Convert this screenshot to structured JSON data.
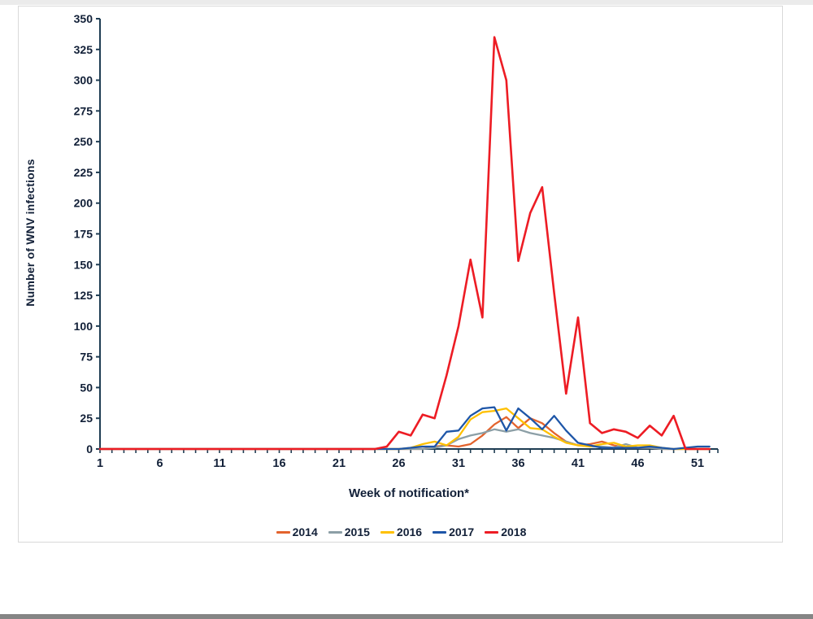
{
  "figure": {
    "axis_color": "#1f3d53",
    "text_color": "#122038",
    "background": "#ffffff",
    "frame_border_color": "#d9d9d9"
  },
  "chart_data": {
    "type": "line",
    "title": "",
    "xlabel": "Week of notification*",
    "ylabel": "Number of WNV infections",
    "xlim": [
      1,
      52
    ],
    "ylim": [
      0,
      350
    ],
    "ytick_step": 25,
    "grid": false,
    "legend_position": "bottom",
    "xticks": [
      1,
      6,
      11,
      16,
      21,
      26,
      31,
      36,
      41,
      46,
      51
    ],
    "yticks": [
      0,
      25,
      50,
      75,
      100,
      125,
      150,
      175,
      200,
      225,
      250,
      275,
      300,
      325,
      350
    ],
    "x_weeks": "1 through 52, one data point per week",
    "series": [
      {
        "name": "2014",
        "color": "#E3632D",
        "values": [
          0,
          0,
          0,
          0,
          0,
          0,
          0,
          0,
          0,
          0,
          0,
          0,
          0,
          0,
          0,
          0,
          0,
          0,
          0,
          0,
          0,
          0,
          0,
          0,
          0,
          0,
          0,
          0,
          2,
          3,
          2,
          4,
          11,
          20,
          26,
          17,
          25,
          21,
          13,
          6,
          3,
          4,
          6,
          3,
          1,
          1,
          1,
          0,
          0,
          0,
          0,
          0
        ]
      },
      {
        "name": "2015",
        "color": "#8C9FA6",
        "values": [
          0,
          0,
          0,
          0,
          0,
          0,
          0,
          0,
          0,
          0,
          0,
          0,
          0,
          0,
          0,
          0,
          0,
          0,
          0,
          0,
          0,
          0,
          0,
          0,
          0,
          0,
          0,
          0,
          1,
          3,
          8,
          11,
          13,
          16,
          14,
          16,
          13,
          11,
          9,
          6,
          3,
          2,
          2,
          1,
          4,
          1,
          1,
          0,
          0,
          0,
          0,
          0
        ]
      },
      {
        "name": "2016",
        "color": "#FFC000",
        "values": [
          0,
          0,
          0,
          0,
          0,
          0,
          0,
          0,
          0,
          0,
          0,
          0,
          0,
          0,
          0,
          0,
          0,
          0,
          0,
          0,
          0,
          0,
          0,
          0,
          0,
          0,
          1,
          4,
          6,
          3,
          10,
          24,
          30,
          31,
          33,
          25,
          17,
          16,
          10,
          5,
          3,
          2,
          4,
          5,
          2,
          3,
          3,
          1,
          0,
          0,
          0,
          0
        ]
      },
      {
        "name": "2017",
        "color": "#1E56A8",
        "values": [
          0,
          0,
          0,
          0,
          0,
          0,
          0,
          0,
          0,
          0,
          0,
          0,
          0,
          0,
          0,
          0,
          0,
          0,
          0,
          0,
          0,
          0,
          0,
          0,
          0,
          0,
          1,
          2,
          2,
          14,
          15,
          27,
          33,
          34,
          15,
          33,
          25,
          16,
          27,
          15,
          5,
          3,
          1,
          1,
          1,
          1,
          2,
          1,
          0,
          1,
          2,
          2
        ]
      },
      {
        "name": "2018",
        "color": "#ED1C24",
        "values": [
          0,
          0,
          0,
          0,
          0,
          0,
          0,
          0,
          0,
          0,
          0,
          0,
          0,
          0,
          0,
          0,
          0,
          0,
          0,
          0,
          0,
          0,
          0,
          0,
          2,
          14,
          11,
          28,
          25,
          60,
          100,
          154,
          107,
          335,
          300,
          153,
          192,
          213,
          127,
          45,
          107,
          21,
          13,
          16,
          14,
          9,
          19,
          11,
          27,
          0,
          0,
          0
        ]
      }
    ]
  }
}
